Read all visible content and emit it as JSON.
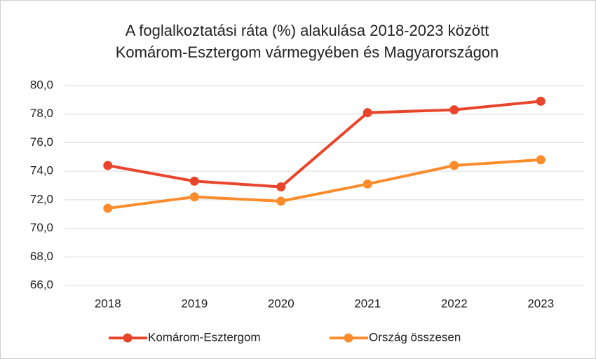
{
  "chart_data": {
    "type": "line",
    "title": [
      "A foglalkoztatási ráta (%) alakulása 2018-2023 között",
      "Komárom-Esztergom vármegyében és Magyarországon"
    ],
    "categories": [
      "2018",
      "2019",
      "2020",
      "2021",
      "2022",
      "2023"
    ],
    "series": [
      {
        "name": "Komárom-Esztergom",
        "color": "#e8452c",
        "values": [
          74.4,
          73.3,
          72.9,
          78.1,
          78.3,
          78.9
        ]
      },
      {
        "name": "Ország összesen",
        "color": "#fb8c2c",
        "values": [
          71.4,
          72.2,
          71.9,
          73.1,
          74.4,
          74.8
        ]
      }
    ],
    "ylim": [
      66,
      80
    ],
    "yticks": [
      {
        "value": 66,
        "label": "66,0"
      },
      {
        "value": 68,
        "label": "68,0"
      },
      {
        "value": 70,
        "label": "70,0"
      },
      {
        "value": 72,
        "label": "72,0"
      },
      {
        "value": 74,
        "label": "74,0"
      },
      {
        "value": 76,
        "label": "76,0"
      },
      {
        "value": 78,
        "label": "78,0"
      },
      {
        "value": 80,
        "label": "80,0"
      }
    ],
    "grid": true,
    "legend": "bottom"
  }
}
